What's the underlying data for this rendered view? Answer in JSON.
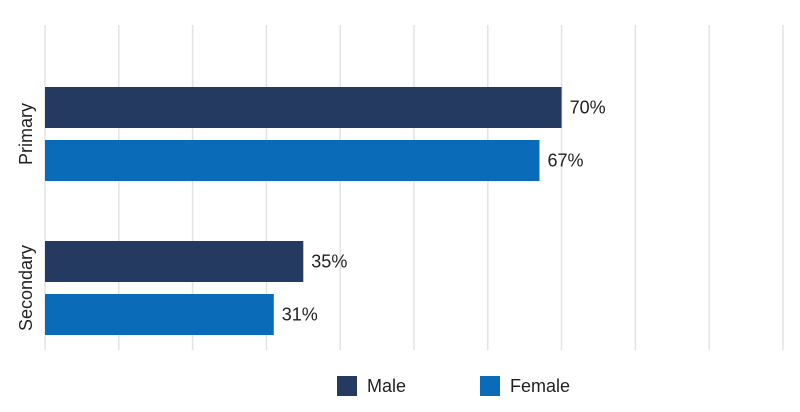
{
  "chart_data": {
    "type": "bar",
    "orientation": "horizontal",
    "categories": [
      "Primary",
      "Secondary"
    ],
    "series": [
      {
        "name": "Male",
        "color": "#253a60",
        "label_color": "#2b3550",
        "values": [
          70,
          35
        ],
        "value_labels": [
          "70%",
          "35%"
        ]
      },
      {
        "name": "Female",
        "color": "#0a6bb8",
        "label_color": "#1a70b8",
        "values": [
          67,
          31
        ],
        "value_labels": [
          "67%",
          "31%"
        ]
      }
    ],
    "xlim": [
      0,
      100
    ],
    "xticks": [
      0,
      10,
      20,
      30,
      40,
      50,
      60,
      70,
      80,
      90,
      100
    ],
    "grid": true,
    "legend": "bottom"
  }
}
